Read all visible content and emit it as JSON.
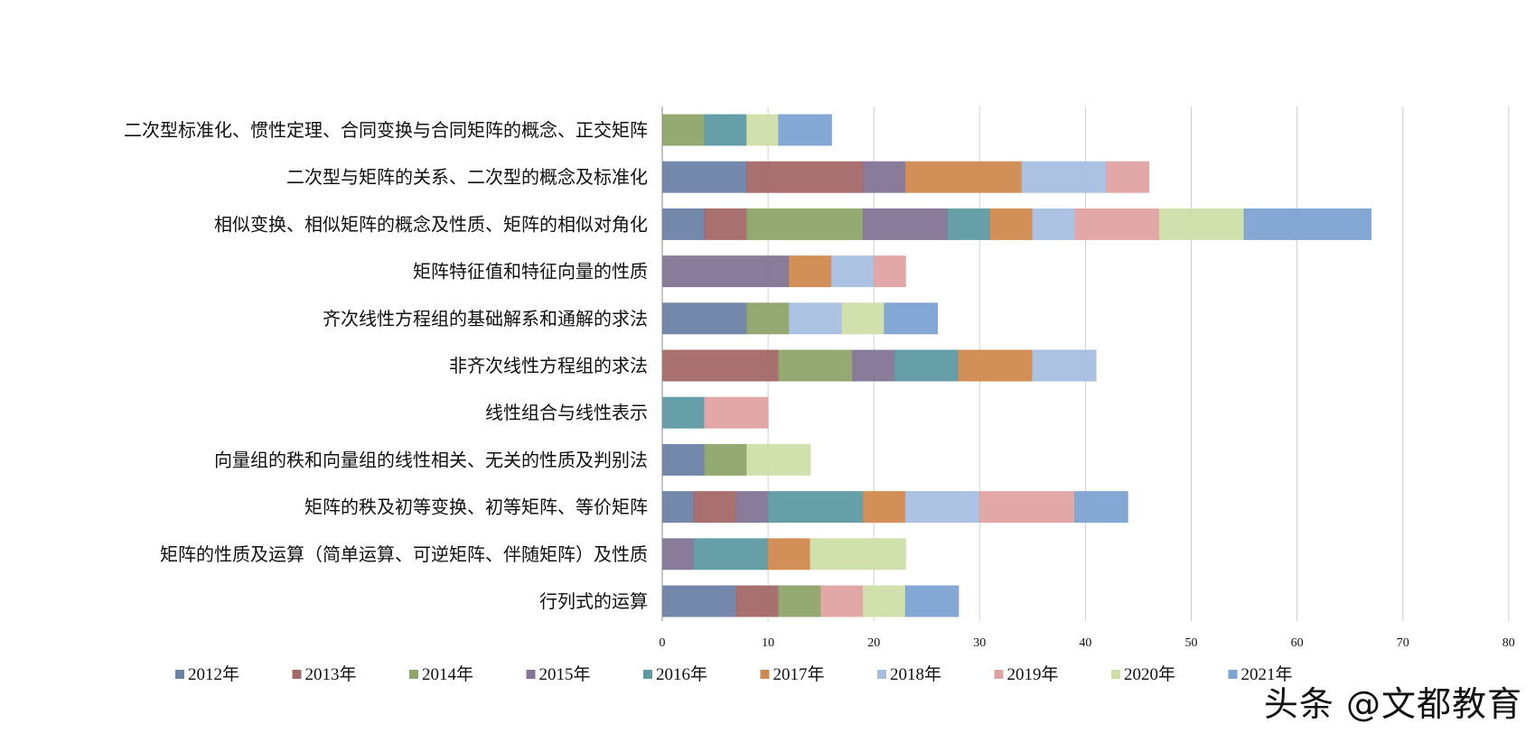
{
  "chart_data": {
    "type": "bar",
    "orientation": "horizontal",
    "stacked": true,
    "categories": [
      "二次型标准化、惯性定理、合同变换与合同矩阵的概念、正交矩阵",
      "二次型与矩阵的关系、二次型的概念及标准化",
      "相似变换、相似矩阵的概念及性质、矩阵的相似对角化",
      "矩阵特征值和特征向量的性质",
      "齐次线性方程组的基础解系和通解的求法",
      "非齐次线性方程组的求法",
      "线性组合与线性表示",
      "向量组的秩和向量组的线性相关、无关的性质及判别法",
      "矩阵的秩及初等变换、初等矩阵、等价矩阵",
      "矩阵的性质及运算（简单运算、可逆矩阵、伴随矩阵）及性质",
      "行列式的运算"
    ],
    "series": [
      {
        "name": "2012年",
        "color": "#6b82a6",
        "values": [
          0,
          8,
          4,
          0,
          8,
          0,
          0,
          4,
          3,
          0,
          7
        ]
      },
      {
        "name": "2013年",
        "color": "#a46868",
        "values": [
          0,
          11,
          4,
          0,
          0,
          11,
          0,
          0,
          4,
          0,
          4
        ]
      },
      {
        "name": "2014年",
        "color": "#8fa46a",
        "values": [
          4,
          0,
          11,
          0,
          4,
          7,
          0,
          4,
          0,
          0,
          4
        ]
      },
      {
        "name": "2015年",
        "color": "#837596",
        "values": [
          0,
          4,
          8,
          12,
          0,
          4,
          0,
          0,
          3,
          3,
          0
        ]
      },
      {
        "name": "2016年",
        "color": "#5f9aa3",
        "values": [
          4,
          0,
          4,
          0,
          0,
          6,
          4,
          0,
          9,
          7,
          0
        ]
      },
      {
        "name": "2017年",
        "color": "#d08a4f",
        "values": [
          0,
          11,
          4,
          4,
          0,
          7,
          0,
          0,
          4,
          4,
          0
        ]
      },
      {
        "name": "2018年",
        "color": "#a6bfe0",
        "values": [
          0,
          8,
          4,
          4,
          5,
          6,
          0,
          0,
          7,
          0,
          0
        ]
      },
      {
        "name": "2019年",
        "color": "#e0a3a3",
        "values": [
          0,
          4,
          8,
          3,
          0,
          0,
          6,
          0,
          9,
          0,
          4
        ]
      },
      {
        "name": "2020年",
        "color": "#cfdfaa",
        "values": [
          3,
          0,
          8,
          0,
          4,
          0,
          0,
          6,
          0,
          9,
          4
        ]
      },
      {
        "name": "2021年",
        "color": "#7ea2d2",
        "values": [
          5,
          0,
          12,
          0,
          5,
          0,
          0,
          0,
          5,
          0,
          5
        ]
      }
    ],
    "xlim": [
      0,
      80
    ],
    "xticks": [
      0,
      10,
      20,
      30,
      40,
      50,
      60,
      70,
      80
    ],
    "grid": "vertical",
    "legend_position": "bottom"
  },
  "watermark": "头条 @文都教育"
}
